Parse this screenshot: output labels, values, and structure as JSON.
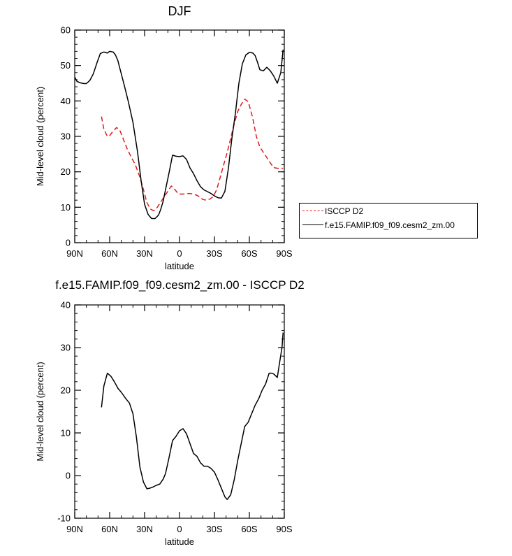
{
  "chart_data": [
    {
      "type": "line",
      "title": "DJF",
      "xlabel": "latitude",
      "ylabel": "Mid-level cloud (percent)",
      "xlim": [
        -90,
        90
      ],
      "ylim": [
        0,
        60
      ],
      "x_ticks": [
        -90,
        -60,
        -30,
        0,
        30,
        60,
        90
      ],
      "x_tick_labels": [
        "90N",
        "60N",
        "30N",
        "0",
        "30S",
        "60S",
        "90S"
      ],
      "y_ticks": [
        0,
        10,
        20,
        30,
        40,
        50,
        60
      ],
      "y_tick_labels": [
        "0",
        "10",
        "20",
        "30",
        "40",
        "50",
        "60"
      ],
      "legend": [
        "ISCCP D2",
        "f.e15.FAMIP.f09_f09.cesm2_zm.00"
      ],
      "series": [
        {
          "name": "ISCCP D2",
          "color": "#e41a1c",
          "style": "dashed",
          "x": [
            -67,
            -65,
            -62,
            -60,
            -57,
            -54,
            -51,
            -48,
            -45,
            -42,
            -38,
            -34,
            -31,
            -28,
            -25,
            -22,
            -19,
            -16,
            -13,
            -10,
            -7,
            -4,
            -1,
            2,
            5,
            8,
            11,
            14,
            17,
            20,
            23,
            26,
            29,
            32,
            35,
            38,
            41,
            44,
            47,
            50,
            53,
            56,
            59,
            61,
            63,
            66,
            69,
            72,
            75,
            78,
            81,
            84,
            87,
            89
          ],
          "values": [
            35.6,
            32,
            30,
            30.2,
            31.5,
            32.5,
            31.5,
            29,
            26.5,
            24.5,
            22,
            18.5,
            15,
            11.3,
            9.5,
            9,
            10,
            11.5,
            13,
            14.5,
            16,
            15,
            13.8,
            13.7,
            13.8,
            13.9,
            13.8,
            13.5,
            13,
            12.2,
            12,
            12.3,
            13,
            15,
            18.5,
            22,
            25.5,
            29.5,
            33.5,
            37,
            39,
            40.5,
            39.8,
            37.5,
            35,
            30,
            27,
            25.5,
            24,
            22.5,
            21.2,
            21,
            21,
            21
          ]
        },
        {
          "name": "f.e15.FAMIP.f09_f09.cesm2_zm.00",
          "color": "#000000",
          "style": "solid",
          "x": [
            -90,
            -88,
            -85,
            -82,
            -80,
            -77,
            -74,
            -71,
            -68,
            -65,
            -62,
            -60,
            -57,
            -55,
            -53,
            -50,
            -47,
            -44,
            -40,
            -36,
            -33,
            -30,
            -27,
            -24,
            -21,
            -18,
            -16,
            -14,
            -12,
            -9,
            -6,
            -3,
            0,
            3,
            6,
            9,
            12,
            15,
            18,
            21,
            24,
            27,
            30,
            33,
            36,
            39,
            42,
            45,
            48,
            51,
            54,
            57,
            60,
            63,
            65,
            67,
            69,
            72,
            75,
            78,
            81,
            84,
            87,
            89
          ],
          "values": [
            46.7,
            45.5,
            45.1,
            44.9,
            44.9,
            45.8,
            47.7,
            50.7,
            53.4,
            53.8,
            53.5,
            54,
            53.8,
            53,
            51.4,
            47.6,
            43.8,
            39.8,
            34,
            25.5,
            17.5,
            10.8,
            8,
            6.8,
            6.8,
            7.8,
            9.5,
            11.8,
            15,
            19.7,
            24.7,
            24.4,
            24.3,
            24.5,
            23.5,
            21.1,
            19.5,
            17.5,
            15.8,
            14.9,
            14.4,
            13.9,
            13.2,
            12.7,
            12.6,
            14.5,
            21,
            29.5,
            36.5,
            45,
            50.5,
            53,
            53.7,
            53.5,
            52.8,
            50.9,
            48.8,
            48.5,
            49.5,
            48.5,
            47,
            45,
            48,
            54.5
          ]
        }
      ]
    },
    {
      "type": "line",
      "title": "f.e15.FAMIP.f09_f09.cesm2_zm.00 - ISCCP D2",
      "xlabel": "latitude",
      "ylabel": "Mid-level cloud (percent)",
      "xlim": [
        -90,
        90
      ],
      "ylim": [
        -10,
        40
      ],
      "x_ticks": [
        -90,
        -60,
        -30,
        0,
        30,
        60,
        90
      ],
      "x_tick_labels": [
        "90N",
        "60N",
        "30N",
        "0",
        "30S",
        "60S",
        "90S"
      ],
      "y_ticks": [
        -10,
        0,
        10,
        20,
        30,
        40
      ],
      "y_tick_labels": [
        "-10",
        "0",
        "10",
        "20",
        "30",
        "40"
      ],
      "series": [
        {
          "name": "difference",
          "color": "#000000",
          "style": "solid",
          "x": [
            -67,
            -65,
            -62,
            -59,
            -56,
            -53,
            -50,
            -46,
            -43,
            -40,
            -37,
            -34,
            -31,
            -28,
            -26,
            -23,
            -20,
            -17,
            -14,
            -12,
            -9,
            -6,
            -3,
            0,
            3,
            6,
            9,
            12,
            15,
            18,
            21,
            24,
            27,
            30,
            33,
            36,
            39,
            41,
            44,
            47,
            50,
            53,
            56,
            59,
            62,
            65,
            68,
            71,
            74,
            77,
            79,
            81,
            84,
            86,
            88,
            89
          ],
          "values": [
            16,
            21,
            24,
            23.3,
            22,
            20.5,
            19.5,
            18,
            17,
            14.5,
            9,
            2,
            -1.5,
            -3.1,
            -3,
            -2.7,
            -2.3,
            -2,
            -0.8,
            0.5,
            4.2,
            8.2,
            9.2,
            10.5,
            11,
            9.8,
            7.5,
            5.2,
            4.5,
            3,
            2.2,
            2.2,
            1.7,
            0.8,
            -1,
            -3,
            -5,
            -5.6,
            -4.5,
            -1,
            3.5,
            7.5,
            11.5,
            12.5,
            14.5,
            16.5,
            18,
            20,
            21.5,
            24,
            24,
            23.8,
            23,
            26.5,
            30,
            33.5
          ]
        }
      ]
    }
  ]
}
